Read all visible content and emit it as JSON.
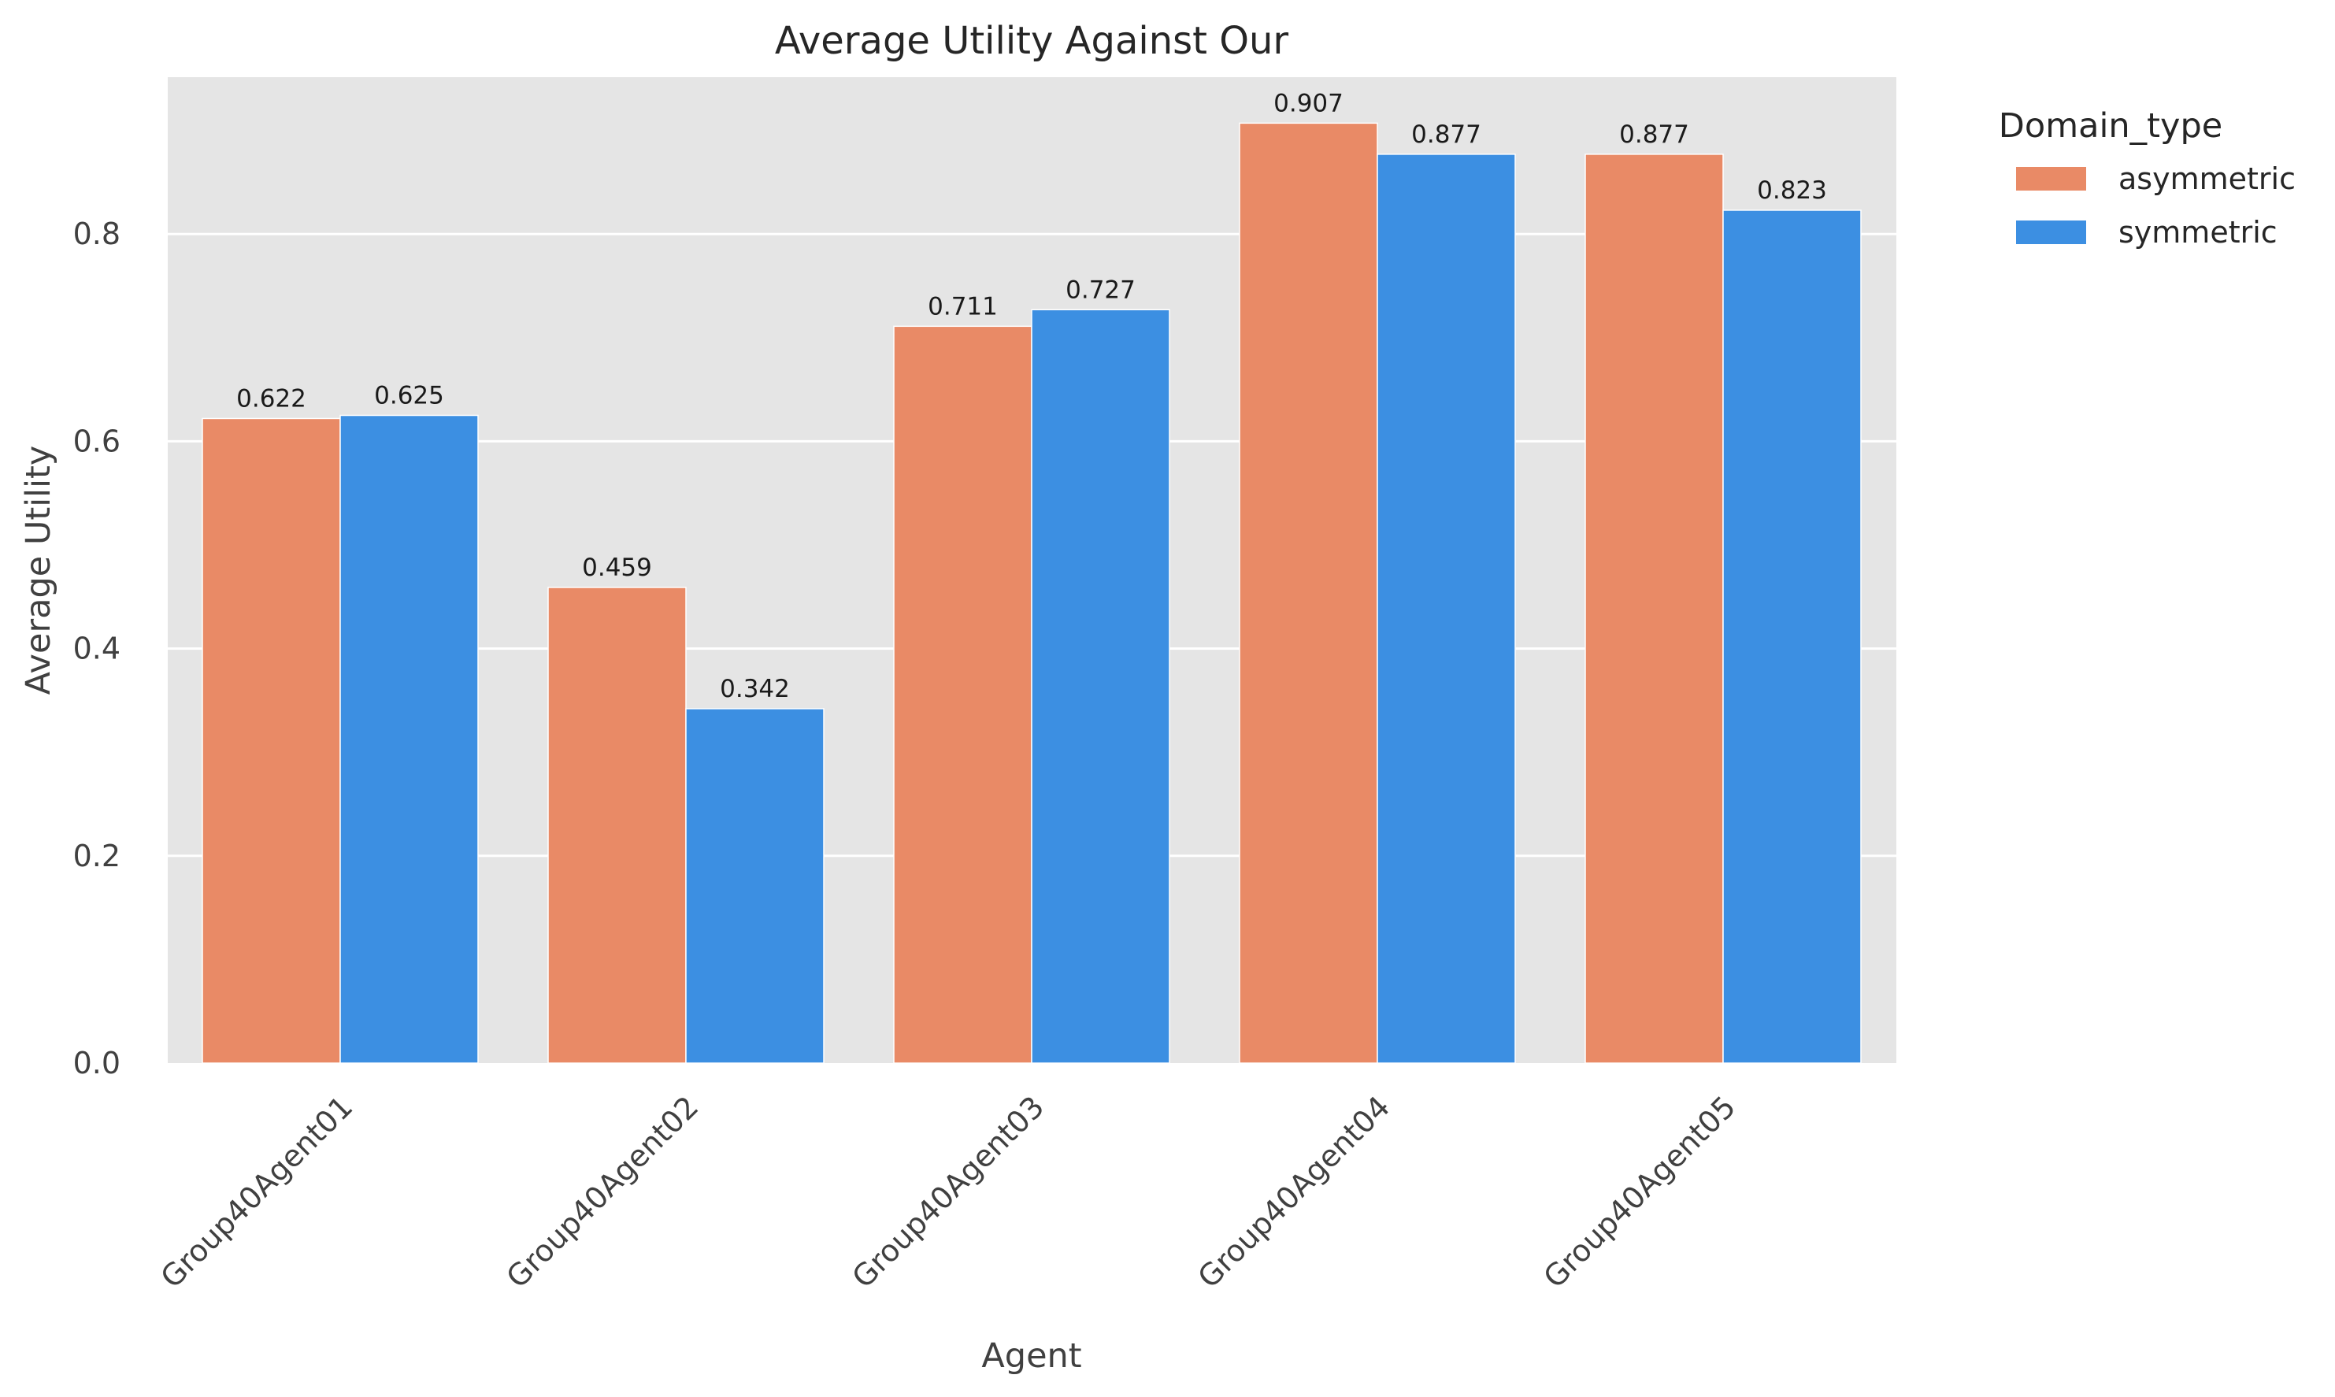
{
  "chart_data": {
    "type": "bar",
    "title": "Average Utility Against Our",
    "xlabel": "Agent",
    "ylabel": "Average Utility",
    "categories": [
      "Group40Agent01",
      "Group40Agent02",
      "Group40Agent03",
      "Group40Agent04",
      "Group40Agent05"
    ],
    "series": [
      {
        "name": "asymmetric",
        "color": "#e98a66",
        "values": [
          0.622,
          0.459,
          0.711,
          0.907,
          0.877
        ],
        "labels": [
          "0.622",
          "0.459",
          "0.711",
          "0.907",
          "0.877"
        ]
      },
      {
        "name": "symmetric",
        "color": "#3c8fe2",
        "values": [
          0.625,
          0.342,
          0.727,
          0.877,
          0.823
        ],
        "labels": [
          "0.625",
          "0.342",
          "0.727",
          "0.877",
          "0.823"
        ]
      }
    ],
    "ylim": [
      0,
      0.95
    ],
    "yticks": [
      0.0,
      0.2,
      0.4,
      0.6,
      0.8
    ],
    "ytick_labels": [
      "0.0",
      "0.2",
      "0.4",
      "0.6",
      "0.8"
    ],
    "grid": true,
    "legend": {
      "title": "Domain_type",
      "placement": "outside-top-right"
    },
    "plot_background": "#e5e5e5"
  }
}
